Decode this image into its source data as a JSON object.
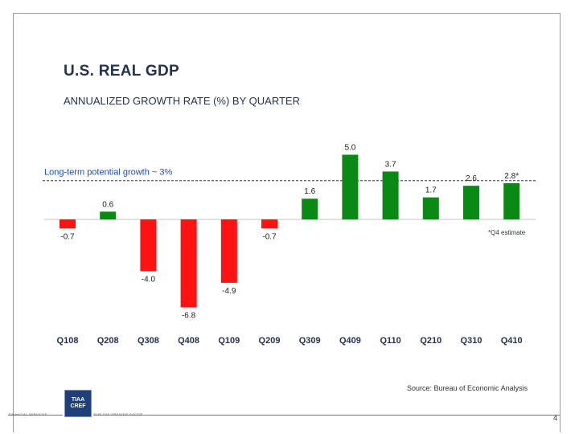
{
  "header": {
    "title": "U.S. REAL GDP",
    "subtitle": "ANNUALIZED GROWTH RATE (%) BY QUARTER"
  },
  "chart_data": {
    "type": "bar",
    "title": "U.S. REAL GDP",
    "subtitle": "ANNUALIZED GROWTH RATE (%) BY QUARTER",
    "categories": [
      "Q108",
      "Q208",
      "Q308",
      "Q408",
      "Q109",
      "Q209",
      "Q309",
      "Q409",
      "Q110",
      "Q210",
      "Q310",
      "Q410"
    ],
    "values": [
      -0.7,
      0.6,
      -4.0,
      -6.8,
      -4.9,
      -0.7,
      1.6,
      5.0,
      3.7,
      1.7,
      2.6,
      2.8
    ],
    "data_labels": [
      "-0.7",
      "0.6",
      "-4.0",
      "-6.8",
      "-4.9",
      "-0.7",
      "1.6",
      "5.0",
      "3.7",
      "1.7",
      "2.6",
      "2.8*"
    ],
    "ylim": [
      -7,
      5.2
    ],
    "reference_line": {
      "value": 3,
      "label": "Long-term potential growth ~ 3%"
    },
    "annotation": "*Q4 estimate",
    "colors": {
      "positive": "#0a8a14",
      "negative": "#ff1212",
      "reference": "#1d4fae"
    },
    "grid": false
  },
  "footer": {
    "source": "Source: Bureau of Economic Analysis",
    "page_number": "4",
    "logo_line1": "TIAA",
    "logo_line2": "CREF",
    "tagline_left": "FINANCIAL SERVICES",
    "tagline_right": "FOR THE GREATER GOOD®"
  }
}
